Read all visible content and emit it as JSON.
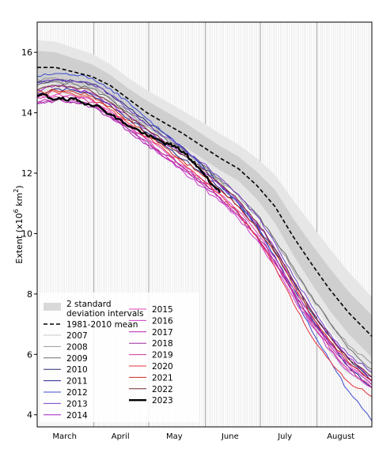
{
  "chart_data": {
    "type": "line",
    "ylabel_main": "Extent (x10",
    "ylabel_sup": "6",
    "ylabel_unit": " km",
    "ylabel_sup2": "2",
    "ylabel_close": ")",
    "ylim": [
      3.6,
      17.0
    ],
    "xlim": [
      60,
      243
    ],
    "y_ticks": [
      4,
      6,
      8,
      10,
      12,
      14,
      16
    ],
    "month_labels": [
      {
        "label": "March",
        "day": 75
      },
      {
        "label": "April",
        "day": 105.5
      },
      {
        "label": "May",
        "day": 135
      },
      {
        "label": "June",
        "day": 165.5
      },
      {
        "label": "July",
        "day": 195.5
      },
      {
        "label": "August",
        "day": 226
      }
    ],
    "month_boundaries": [
      91,
      121,
      152,
      182,
      213
    ],
    "grid": "vertical daily lines",
    "mean_1981_2010": {
      "label": "1981-2010 mean",
      "x": [
        60,
        70,
        80,
        90,
        100,
        110,
        120,
        130,
        140,
        150,
        160,
        170,
        180,
        190,
        200,
        210,
        220,
        230,
        243
      ],
      "y": [
        15.5,
        15.5,
        15.35,
        15.2,
        14.9,
        14.45,
        14.0,
        13.65,
        13.3,
        12.9,
        12.5,
        12.15,
        11.6,
        10.9,
        9.9,
        9.0,
        8.15,
        7.4,
        6.6
      ]
    },
    "std_band": {
      "label": "2 standard deviation intervals",
      "x": [
        60,
        70,
        80,
        90,
        100,
        110,
        120,
        130,
        140,
        150,
        160,
        170,
        180,
        190,
        200,
        210,
        220,
        230,
        243
      ],
      "inner_upper": [
        16.05,
        16.0,
        15.8,
        15.6,
        15.25,
        14.8,
        14.4,
        14.05,
        13.7,
        13.3,
        12.9,
        12.55,
        12.05,
        11.45,
        10.5,
        9.65,
        8.85,
        8.1,
        7.3
      ],
      "inner_lower": [
        14.95,
        15.0,
        14.9,
        14.8,
        14.55,
        14.1,
        13.6,
        13.25,
        12.9,
        12.5,
        12.1,
        11.75,
        11.15,
        10.35,
        9.3,
        8.35,
        7.45,
        6.7,
        5.9
      ],
      "outer_upper": [
        16.4,
        16.35,
        16.15,
        15.95,
        15.6,
        15.15,
        14.75,
        14.4,
        14.05,
        13.7,
        13.3,
        12.95,
        12.5,
        11.95,
        11.1,
        10.3,
        9.5,
        8.75,
        7.9
      ],
      "outer_lower": [
        14.6,
        14.65,
        14.55,
        14.45,
        14.2,
        13.75,
        13.25,
        12.9,
        12.55,
        12.1,
        11.7,
        11.35,
        10.7,
        9.85,
        8.7,
        7.7,
        6.8,
        6.05,
        5.3
      ]
    },
    "x_common": [
      60,
      70,
      80,
      90,
      100,
      110,
      120,
      130,
      140,
      150,
      160,
      170,
      180,
      190,
      200,
      210,
      220,
      230,
      243
    ],
    "series": [
      {
        "name": "2007",
        "color": "#c8c8c8",
        "width": 1,
        "y": [
          14.95,
          15.0,
          14.85,
          14.7,
          14.3,
          13.85,
          13.45,
          13.05,
          12.65,
          12.2,
          11.6,
          11.0,
          10.2,
          9.2,
          8.1,
          7.0,
          6.1,
          5.4,
          5.0
        ]
      },
      {
        "name": "2008",
        "color": "#999999",
        "width": 1,
        "y": [
          15.1,
          15.15,
          15.05,
          14.9,
          14.5,
          14.0,
          13.55,
          13.15,
          12.75,
          12.3,
          11.75,
          11.25,
          10.6,
          9.8,
          8.8,
          7.9,
          7.05,
          6.3,
          5.7
        ]
      },
      {
        "name": "2009",
        "color": "#6e6e6e",
        "width": 1,
        "y": [
          14.9,
          15.05,
          14.95,
          14.8,
          14.45,
          14.0,
          13.6,
          13.15,
          12.75,
          12.3,
          11.8,
          11.3,
          10.65,
          9.8,
          8.9,
          7.95,
          7.05,
          6.2,
          5.5
        ]
      },
      {
        "name": "2010",
        "color": "#2a2a72",
        "width": 1,
        "y": [
          15.0,
          15.1,
          15.05,
          14.95,
          14.6,
          14.15,
          13.7,
          13.3,
          12.85,
          12.3,
          11.6,
          11.0,
          10.3,
          9.4,
          8.4,
          7.4,
          6.6,
          5.9,
          5.1
        ]
      },
      {
        "name": "2011",
        "color": "#23238c",
        "width": 1,
        "y": [
          14.6,
          14.8,
          14.75,
          14.6,
          14.25,
          13.8,
          13.35,
          12.9,
          12.45,
          12.0,
          11.5,
          10.9,
          10.2,
          9.25,
          8.2,
          7.2,
          6.4,
          5.6,
          4.9
        ]
      },
      {
        "name": "2012",
        "color": "#3b4bd0",
        "width": 1,
        "y": [
          15.2,
          15.3,
          15.25,
          15.15,
          14.8,
          14.35,
          13.8,
          13.3,
          12.8,
          12.2,
          11.6,
          11.0,
          10.25,
          9.2,
          8.0,
          6.8,
          5.8,
          4.8,
          3.8
        ]
      },
      {
        "name": "2013",
        "color": "#7040c8",
        "width": 1,
        "y": [
          15.0,
          15.1,
          15.05,
          14.95,
          14.6,
          14.1,
          13.6,
          13.2,
          12.8,
          12.35,
          11.85,
          11.3,
          10.6,
          9.7,
          8.6,
          7.6,
          6.7,
          6.0,
          5.4
        ]
      },
      {
        "name": "2014",
        "color": "#a020c8",
        "width": 1,
        "y": [
          14.75,
          14.9,
          14.8,
          14.65,
          14.3,
          13.9,
          13.45,
          13.0,
          12.6,
          12.1,
          11.6,
          11.05,
          10.35,
          9.5,
          8.4,
          7.45,
          6.6,
          5.9,
          5.25
        ]
      },
      {
        "name": "2015",
        "color": "#e040c0",
        "width": 1,
        "y": [
          14.5,
          14.6,
          14.55,
          14.4,
          14.05,
          13.6,
          13.15,
          12.7,
          12.25,
          11.8,
          11.3,
          10.75,
          10.05,
          9.2,
          8.2,
          7.25,
          6.4,
          5.7,
          5.1
        ]
      },
      {
        "name": "2016",
        "color": "#c83cc8",
        "width": 1,
        "y": [
          14.3,
          14.45,
          14.4,
          14.25,
          13.9,
          13.45,
          12.95,
          12.5,
          12.05,
          11.55,
          11.05,
          10.5,
          9.8,
          8.9,
          7.9,
          6.95,
          6.15,
          5.45,
          4.9
        ]
      },
      {
        "name": "2017",
        "color": "#b41eb4",
        "width": 1,
        "y": [
          14.35,
          14.45,
          14.35,
          14.2,
          13.85,
          13.4,
          12.95,
          12.5,
          12.1,
          11.65,
          11.15,
          10.6,
          9.9,
          9.05,
          8.05,
          7.1,
          6.3,
          5.6,
          5.0
        ]
      },
      {
        "name": "2018",
        "color": "#a0289c",
        "width": 1,
        "y": [
          14.3,
          14.4,
          14.35,
          14.25,
          13.9,
          13.45,
          13.05,
          12.6,
          12.2,
          11.7,
          11.2,
          10.65,
          9.95,
          9.1,
          8.1,
          7.15,
          6.35,
          5.7,
          5.15
        ]
      },
      {
        "name": "2019",
        "color": "#d2329c",
        "width": 1,
        "y": [
          14.5,
          14.55,
          14.5,
          14.35,
          14.0,
          13.55,
          13.1,
          12.6,
          12.15,
          11.7,
          11.2,
          10.6,
          9.9,
          9.0,
          8.0,
          7.05,
          6.2,
          5.5,
          4.9
        ]
      },
      {
        "name": "2020",
        "color": "#e6323c",
        "width": 1,
        "y": [
          14.6,
          14.7,
          14.6,
          14.45,
          14.1,
          13.65,
          13.2,
          12.75,
          12.3,
          11.8,
          11.3,
          10.7,
          9.9,
          8.9,
          7.7,
          6.6,
          5.8,
          5.1,
          4.6
        ]
      },
      {
        "name": "2021",
        "color": "#c8281e",
        "width": 1,
        "y": [
          14.65,
          14.75,
          14.7,
          14.55,
          14.2,
          13.75,
          13.3,
          12.85,
          12.4,
          11.95,
          11.45,
          10.9,
          10.2,
          9.35,
          8.3,
          7.3,
          6.45,
          5.75,
          5.15
        ]
      },
      {
        "name": "2022",
        "color": "#6e2a2a",
        "width": 1,
        "y": [
          14.75,
          14.9,
          14.85,
          14.7,
          14.35,
          13.9,
          13.45,
          13.0,
          12.6,
          12.15,
          11.65,
          11.1,
          10.4,
          9.5,
          8.45,
          7.45,
          6.6,
          5.85,
          5.25
        ]
      },
      {
        "name": "2023",
        "color": "#000000",
        "width": 2.4,
        "x": [
          60,
          64,
          68,
          72,
          76,
          80,
          84,
          88,
          92,
          96,
          100,
          104,
          108,
          112,
          116,
          120,
          124,
          128,
          132,
          136,
          140,
          144,
          148,
          152,
          156,
          160
        ],
        "y": [
          14.55,
          14.6,
          14.45,
          14.5,
          14.4,
          14.45,
          14.35,
          14.3,
          14.25,
          14.1,
          13.95,
          13.8,
          13.65,
          13.5,
          13.4,
          13.25,
          13.15,
          13.05,
          12.95,
          12.85,
          12.7,
          12.45,
          12.2,
          11.9,
          11.6,
          11.35
        ]
      }
    ],
    "legend": {
      "position": "bottom-left",
      "band_label": "2 standard deviation intervals",
      "band_label_line1": "2 standard",
      "band_label_line2": "deviation intervals",
      "mean_label": "1981-2010 mean"
    }
  }
}
